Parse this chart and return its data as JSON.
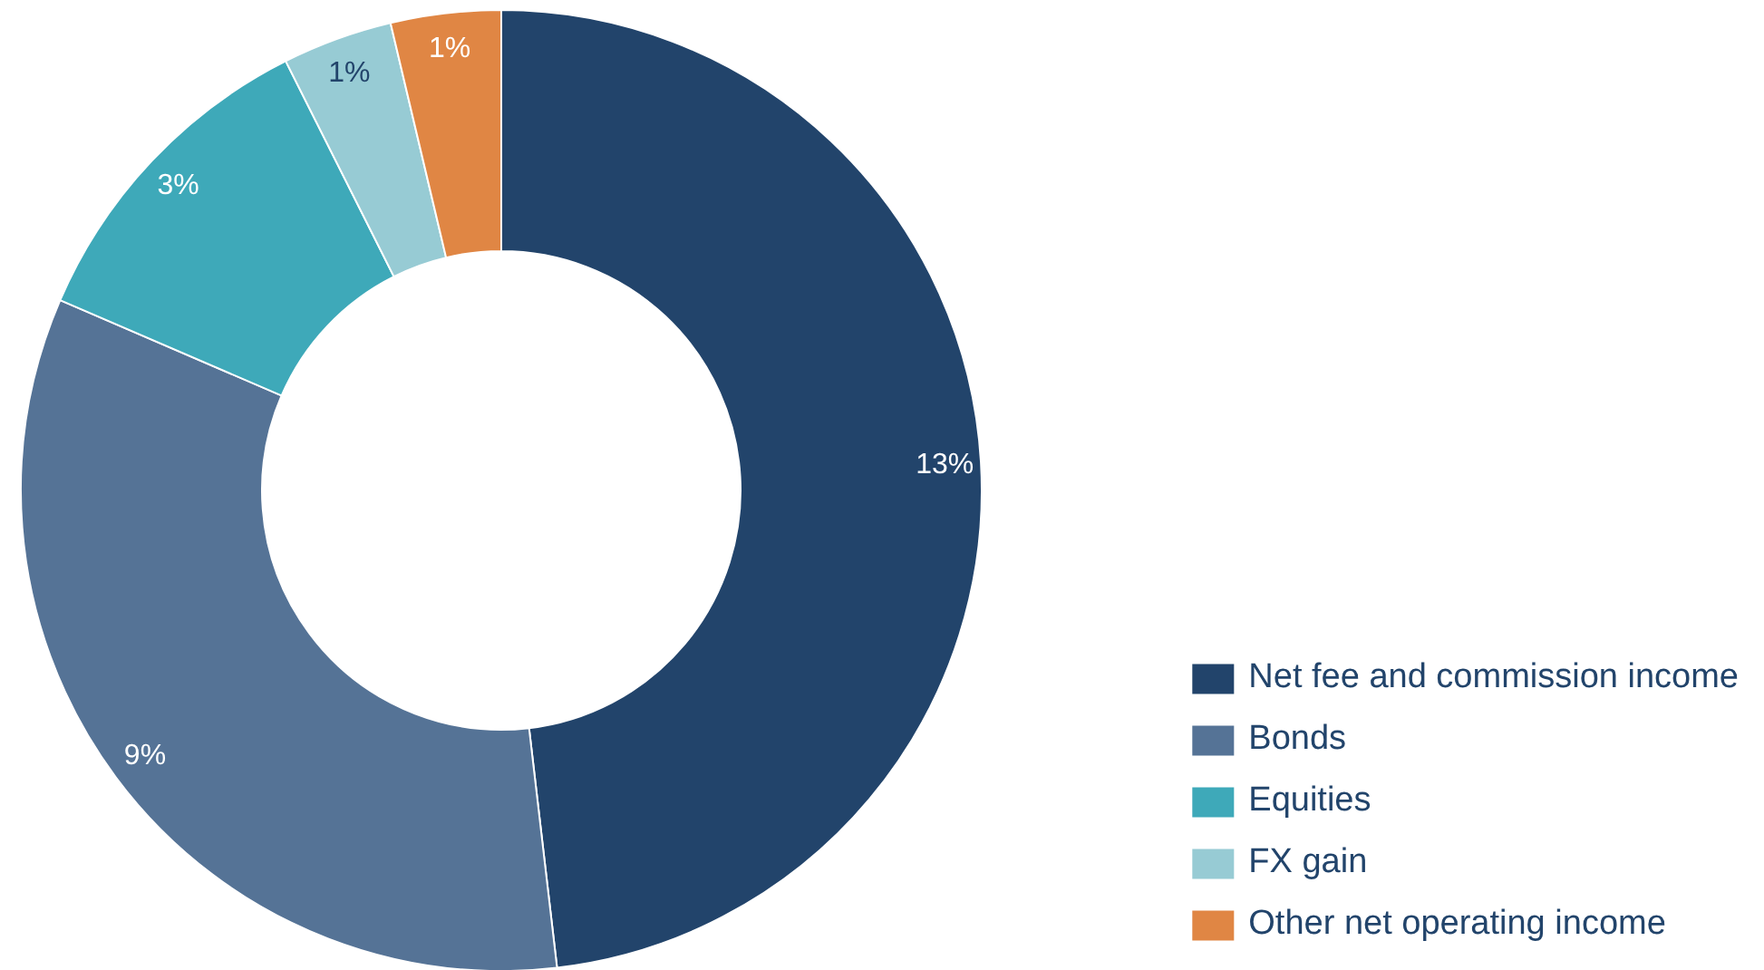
{
  "chart_data": {
    "type": "donut",
    "categories": [
      "Net fee and commission income",
      "Bonds",
      "Equities",
      "FX gain",
      "Other net operating income"
    ],
    "values": [
      13,
      9,
      3,
      1,
      1
    ],
    "colors": [
      "#22446b",
      "#557396",
      "#3ea9b9",
      "#97cbd4",
      "#e08644"
    ],
    "value_labels": [
      "13%",
      "9%",
      "3%",
      "1%",
      "1%"
    ],
    "legend": "bottom right"
  }
}
